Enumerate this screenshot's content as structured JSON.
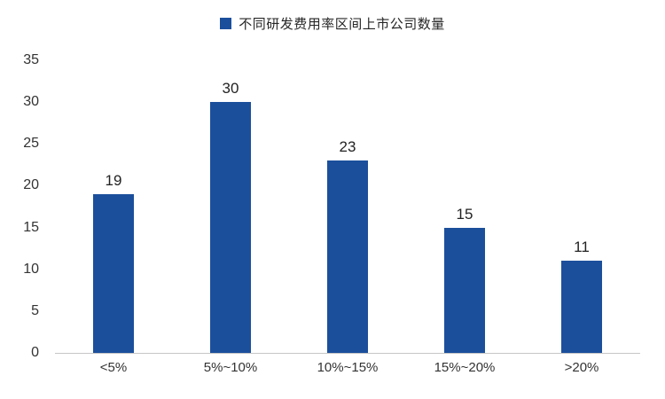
{
  "chart_data": {
    "type": "bar",
    "title": "不同研发费用率区间上市公司数量",
    "categories": [
      "<5%",
      "5%~10%",
      "10%~15%",
      "15%~20%",
      ">20%"
    ],
    "values": [
      19,
      30,
      23,
      15,
      11
    ],
    "xlabel": "",
    "ylabel": "",
    "ylim": [
      0,
      35
    ],
    "yticks": [
      0,
      5,
      10,
      15,
      20,
      25,
      30,
      35
    ],
    "bar_color": "#1b4f9c",
    "legend_position": "top",
    "grid": false
  }
}
